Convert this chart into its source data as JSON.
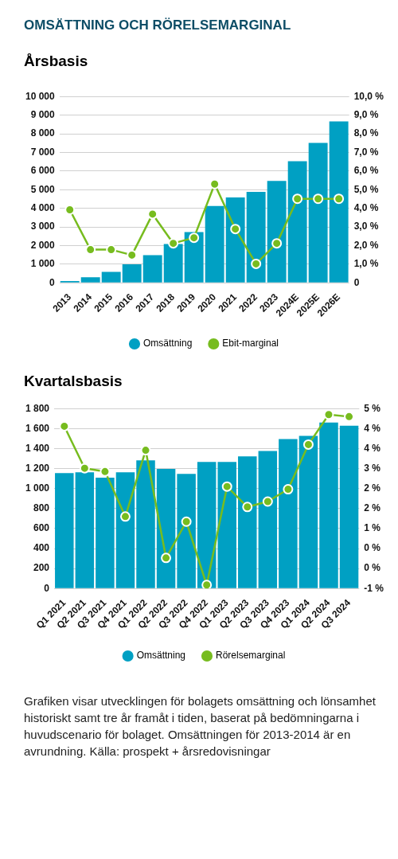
{
  "chart_data": [
    {
      "type": "bar",
      "title": "OMSÄTTNING OCH RÖRELSEMARGINAL",
      "subtitle": "Årsbasis",
      "categories": [
        "2013",
        "2014",
        "2015",
        "2016",
        "2017",
        "2018",
        "2019",
        "2020",
        "2021",
        "2022",
        "2023",
        "2024E",
        "2025E",
        "2026E"
      ],
      "series": [
        {
          "name": "Omsättning",
          "color": "#00a0c3",
          "values": [
            100,
            300,
            590,
            990,
            1490,
            2080,
            2720,
            4120,
            4580,
            4880,
            5470,
            6530,
            7510,
            8660
          ]
        },
        {
          "name": "Ebit-marginal",
          "type": "line",
          "axis": "y2",
          "color": "#77bc1f",
          "values": [
            3.92,
            1.78,
            1.78,
            1.49,
            3.69,
            2.12,
            2.42,
            5.3,
            2.89,
            1.02,
            2.12,
            4.51,
            4.51,
            4.51
          ]
        }
      ],
      "ylim": [
        0,
        10000
      ],
      "yticks": [
        0,
        {
          "value": 1000,
          "label": "1 000"
        },
        {
          "value": 2000,
          "label": "2 000"
        },
        {
          "value": 3000,
          "label": "3 000"
        },
        {
          "value": 4000,
          "label": "4 000"
        },
        {
          "value": 5000,
          "label": "5 000"
        },
        {
          "value": 6000,
          "label": "6 000"
        },
        {
          "value": 7000,
          "label": "7 000"
        },
        {
          "value": 8000,
          "label": "8 000"
        },
        {
          "value": 9000,
          "label": "9 000"
        },
        {
          "value": 10000,
          "label": "10 000"
        }
      ],
      "y2lim": [
        0,
        10
      ],
      "y2ticks": [
        0,
        {
          "value": 1,
          "label": "1,0 %"
        },
        {
          "value": 2,
          "label": "2,0 %"
        },
        {
          "value": 3,
          "label": "3,0 %"
        },
        {
          "value": 4,
          "label": "4,0 %"
        },
        {
          "value": 5,
          "label": "5,0 %"
        },
        {
          "value": 6,
          "label": "6,0 %"
        },
        {
          "value": 7,
          "label": "7,0 %"
        },
        {
          "value": 8,
          "label": "8,0 %"
        },
        {
          "value": 9,
          "label": "9,0 %"
        },
        {
          "value": 10,
          "label": "10,0 %"
        }
      ],
      "grid": "y",
      "legend": "bottom",
      "marker": "circle"
    },
    {
      "type": "bar",
      "title": "Kvartalsbasis",
      "categories": [
        "Q1 2021",
        "Q2 2021",
        "Q3 2021",
        "Q4 2021",
        "Q1 2022",
        "Q2 2022",
        "Q3 2022",
        "Q4 2022",
        "Q1 2023",
        "Q2 2023",
        "Q3 2023",
        "Q4 2023",
        "Q1 2024",
        "Q2 2024",
        "Q3 2024"
      ],
      "series": [
        {
          "name": "Omsättning",
          "color": "#00a0c3",
          "values": [
            1155,
            1163,
            1108,
            1163,
            1282,
            1197,
            1147,
            1266,
            1266,
            1321,
            1376,
            1495,
            1526,
            1661,
            1629
          ]
        },
        {
          "name": "Rörelsemarginal",
          "type": "line",
          "axis": "y2",
          "color": "#77bc1f",
          "values": [
            4.41,
            3.01,
            2.9,
            1.4,
            3.61,
            0.02,
            1.23,
            -0.88,
            2.4,
            1.72,
            1.9,
            2.31,
            3.8,
            4.8,
            4.73
          ]
        }
      ],
      "ylim": [
        0,
        1800
      ],
      "yticks": [
        0,
        200,
        400,
        600,
        800,
        {
          "value": 1000,
          "label": "1 000"
        },
        {
          "value": 1200,
          "label": "1 200"
        },
        {
          "value": 1400,
          "label": "1 400"
        },
        {
          "value": 1600,
          "label": "1 600"
        },
        {
          "value": 1800,
          "label": "1 800"
        }
      ],
      "y2lim": [
        -1,
        5
      ],
      "y2ticks": [
        {
          "value": -1,
          "label": "-1 %"
        },
        {
          "value": -0.333,
          "label": "0 %"
        },
        {
          "value": 0.333,
          "label": "0 %"
        },
        {
          "value": 1,
          "label": "1 %"
        },
        {
          "value": 1.667,
          "label": "2 %"
        },
        {
          "value": 2.333,
          "label": "2 %"
        },
        {
          "value": 3,
          "label": "3 %"
        },
        {
          "value": 3.667,
          "label": "4 %"
        },
        {
          "value": 4.333,
          "label": "4 %"
        },
        {
          "value": 5,
          "label": "5 %"
        }
      ],
      "grid": "y",
      "legend": "bottom",
      "marker": "circle",
      "annotations": [
        "Grafiken visar utvecklingen för bolagets omsättning och lönsamhet historiskt samt tre år framåt i tiden, baserat på bedömningarna i huvudscenario för bolaget. Omsättningen för 2013-2014 är en avrundning. Källa: prospekt + årsredovisningar"
      ]
    }
  ]
}
